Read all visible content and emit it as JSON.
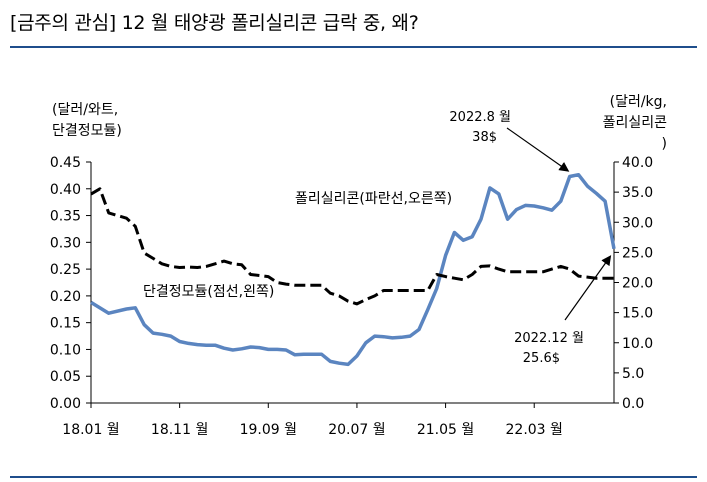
{
  "header": {
    "title": "[금주의 관심] 12 월 태양광 폴리실리콘 급락 중, 왜?"
  },
  "chart_data": {
    "type": "line",
    "title": "[금주의 관심] 12 월 태양광 폴리실리콘 급락 중, 왜?",
    "y_left": {
      "label_lines": [
        "(달러/와트,",
        "단결정모듈)"
      ],
      "ylim": [
        0.0,
        0.45
      ],
      "ticks": [
        "0.00",
        "0.05",
        "0.10",
        "0.15",
        "0.20",
        "0.25",
        "0.30",
        "0.35",
        "0.40",
        "0.45"
      ]
    },
    "y_right": {
      "label_lines": [
        "(달러/kg,",
        "폴리실리콘",
        ")"
      ],
      "ylim": [
        0.0,
        40.0
      ],
      "ticks": [
        "0.0",
        "5.0",
        "10.0",
        "15.0",
        "20.0",
        "25.0",
        "30.0",
        "35.0",
        "40.0"
      ]
    },
    "x_ticks": [
      {
        "label": "18.01 월",
        "index": 0
      },
      {
        "label": "18.11 월",
        "index": 10
      },
      {
        "label": "19.09 월",
        "index": 20
      },
      {
        "label": "20.07 월",
        "index": 30
      },
      {
        "label": "21.05 월",
        "index": 40
      },
      {
        "label": "22.03 월",
        "index": 50
      }
    ],
    "x_range": [
      0,
      59
    ],
    "grid": false,
    "series": [
      {
        "name": "폴리실리콘(파란선,오른쪽)",
        "axis": "right",
        "color": "#5b85c0",
        "style": "solid",
        "x": [
          0,
          2,
          4,
          5,
          6,
          7,
          8,
          9,
          10,
          11,
          12,
          13,
          14,
          15,
          16,
          17,
          18,
          19,
          20,
          21,
          22,
          23,
          24,
          25,
          26,
          27,
          28,
          29,
          30,
          31,
          32,
          33,
          34,
          35,
          36,
          37,
          38,
          39,
          40,
          41,
          42,
          43,
          44,
          45,
          46,
          47,
          48,
          49,
          50,
          51,
          52,
          53,
          54,
          55,
          56,
          57,
          58,
          59
        ],
        "values": [
          16.7,
          14.9,
          15.6,
          15.8,
          13.0,
          11.6,
          11.4,
          11.1,
          10.2,
          9.9,
          9.7,
          9.6,
          9.6,
          9.1,
          8.8,
          9.0,
          9.3,
          9.2,
          8.9,
          8.9,
          8.8,
          8.0,
          8.1,
          8.1,
          8.1,
          6.9,
          6.6,
          6.4,
          7.8,
          10.0,
          11.1,
          11.0,
          10.8,
          10.9,
          11.1,
          12.2,
          15.5,
          19.0,
          24.5,
          28.3,
          27.0,
          27.6,
          30.5,
          35.7,
          34.7,
          30.5,
          32.1,
          32.8,
          32.7,
          32.4,
          32.0,
          33.5,
          37.6,
          37.9,
          36.0,
          34.8,
          33.5,
          25.6
        ]
      },
      {
        "name": "단결정모듈(점선,왼쪽)",
        "axis": "left",
        "color": "#000000",
        "style": "dashed",
        "x": [
          0,
          1,
          2,
          3,
          4,
          5,
          6,
          7,
          8,
          9,
          10,
          11,
          12,
          13,
          14,
          15,
          16,
          17,
          18,
          19,
          20,
          21,
          22,
          23,
          24,
          25,
          26,
          27,
          28,
          29,
          30,
          31,
          32,
          33,
          34,
          35,
          36,
          37,
          38,
          39,
          40,
          41,
          42,
          43,
          44,
          45,
          46,
          47,
          48,
          49,
          50,
          51,
          52,
          53,
          54,
          55,
          56,
          57,
          58,
          59
        ],
        "values": [
          0.39,
          0.4,
          0.355,
          0.35,
          0.345,
          0.33,
          0.28,
          0.27,
          0.26,
          0.255,
          0.253,
          0.254,
          0.253,
          0.255,
          0.26,
          0.265,
          0.26,
          0.258,
          0.24,
          0.238,
          0.236,
          0.225,
          0.222,
          0.22,
          0.22,
          0.22,
          0.22,
          0.205,
          0.2,
          0.19,
          0.185,
          0.193,
          0.2,
          0.21,
          0.21,
          0.21,
          0.21,
          0.21,
          0.21,
          0.24,
          0.236,
          0.233,
          0.23,
          0.24,
          0.255,
          0.256,
          0.25,
          0.245,
          0.245,
          0.245,
          0.245,
          0.245,
          0.25,
          0.255,
          0.25,
          0.237,
          0.235,
          0.233,
          0.233,
          0.233
        ]
      }
    ],
    "annotations": [
      {
        "lines": [
          "2022.8 월",
          "38$"
        ],
        "target_index": 54,
        "target_axis": "right",
        "target_value": 37.9
      },
      {
        "lines": [
          "2022.12 월",
          "25.6$"
        ],
        "target_index": 59,
        "target_axis": "right",
        "target_value": 25.6
      }
    ]
  }
}
